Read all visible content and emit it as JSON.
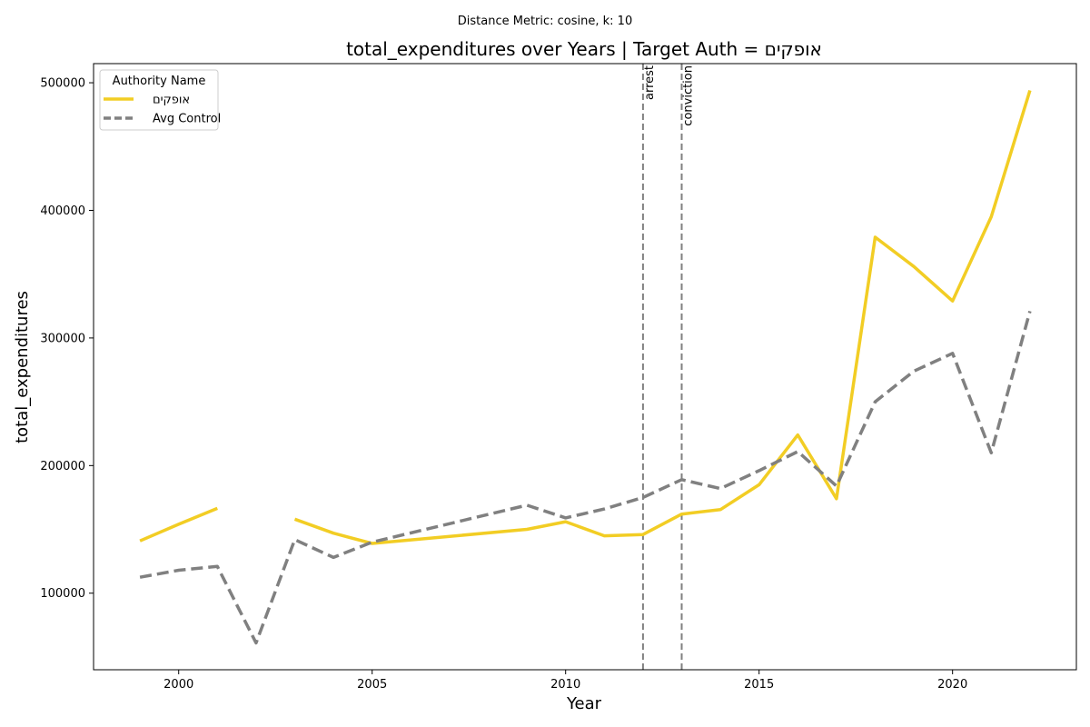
{
  "chart_data": {
    "type": "line",
    "suptitle": "Distance Metric: cosine, k: 10",
    "title": "total_expenditures over Years | Target Auth = אופקים",
    "xlabel": "Year",
    "ylabel": "total_expenditures",
    "xlim": [
      1997.8,
      2023.2
    ],
    "ylim": [
      40000,
      515000
    ],
    "xticks": [
      2000,
      2005,
      2010,
      2015,
      2020
    ],
    "yticks": [
      100000,
      200000,
      300000,
      400000,
      500000
    ],
    "grid": false,
    "legend": {
      "title": "Authority Name",
      "placement": "top-left"
    },
    "series": [
      {
        "name": "אופקים",
        "color": "#f2cd24",
        "dash": "solid",
        "points": [
          [
            1999,
            141000
          ],
          [
            2000,
            154000
          ],
          [
            2001,
            166500
          ],
          [
            2002,
            null
          ],
          [
            2003,
            158000
          ],
          [
            2004,
            147000
          ],
          [
            2005,
            139000
          ],
          [
            2009,
            150000
          ],
          [
            2010,
            156000
          ],
          [
            2011,
            145000
          ],
          [
            2012,
            146000
          ],
          [
            2013,
            162000
          ],
          [
            2014,
            165500
          ],
          [
            2015,
            185000
          ],
          [
            2016,
            224000
          ],
          [
            2017,
            174000
          ],
          [
            2018,
            379000
          ],
          [
            2019,
            356000
          ],
          [
            2020,
            329000
          ],
          [
            2021,
            395000
          ],
          [
            2022,
            494000
          ]
        ]
      },
      {
        "name": "Avg Control",
        "color": "#808080",
        "dash": "dashed",
        "points": [
          [
            1999,
            112500
          ],
          [
            2000,
            118000
          ],
          [
            2001,
            121000
          ],
          [
            2002,
            61000
          ],
          [
            2003,
            142000
          ],
          [
            2004,
            128000
          ],
          [
            2005,
            140000
          ],
          [
            2009,
            169000
          ],
          [
            2010,
            159000
          ],
          [
            2011,
            166000
          ],
          [
            2012,
            175000
          ],
          [
            2013,
            189000
          ],
          [
            2014,
            182000
          ],
          [
            2015,
            196000
          ],
          [
            2016,
            211000
          ],
          [
            2017,
            184000
          ],
          [
            2018,
            250000
          ],
          [
            2019,
            274000
          ],
          [
            2020,
            288000
          ],
          [
            2021,
            210000
          ],
          [
            2022,
            321000
          ]
        ]
      }
    ],
    "events": [
      {
        "label": "arrest",
        "x": 2012
      },
      {
        "label": "conviction",
        "x": 2013
      }
    ]
  }
}
